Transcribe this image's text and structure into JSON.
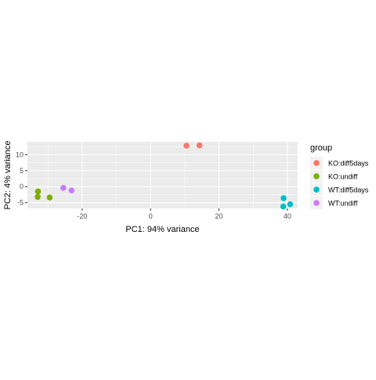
{
  "chart_data": {
    "type": "scatter",
    "xlabel": "PC1: 94% variance",
    "ylabel": "PC2: 4% variance",
    "xlim": [
      -36,
      43
    ],
    "ylim": [
      -6.8,
      14
    ],
    "x_ticks": [
      -20,
      0,
      20,
      40
    ],
    "y_ticks": [
      -5,
      0,
      5,
      10
    ],
    "grid": true,
    "panel_background": "#EBEBEB",
    "grid_color": "#FFFFFF",
    "legend": {
      "title": "group",
      "placement": "right"
    },
    "series": [
      {
        "name": "KO:diff5days",
        "color": "#F8766D",
        "points": [
          {
            "x": 10.5,
            "y": 12.8
          },
          {
            "x": 14.3,
            "y": 12.9
          }
        ]
      },
      {
        "name": "KO:undiff",
        "color": "#7CAE00",
        "points": [
          {
            "x": -32.9,
            "y": -1.5
          },
          {
            "x": -33.0,
            "y": -3.2
          },
          {
            "x": -29.5,
            "y": -3.4
          }
        ]
      },
      {
        "name": "WT:diff5days",
        "color": "#00BFC4",
        "points": [
          {
            "x": 38.9,
            "y": -3.6
          },
          {
            "x": 40.8,
            "y": -5.5
          },
          {
            "x": 38.8,
            "y": -6.2
          }
        ]
      },
      {
        "name": "WT:undiff",
        "color": "#C77CFF",
        "points": [
          {
            "x": -25.5,
            "y": -0.4
          },
          {
            "x": -23.1,
            "y": -1.2
          }
        ]
      }
    ]
  }
}
